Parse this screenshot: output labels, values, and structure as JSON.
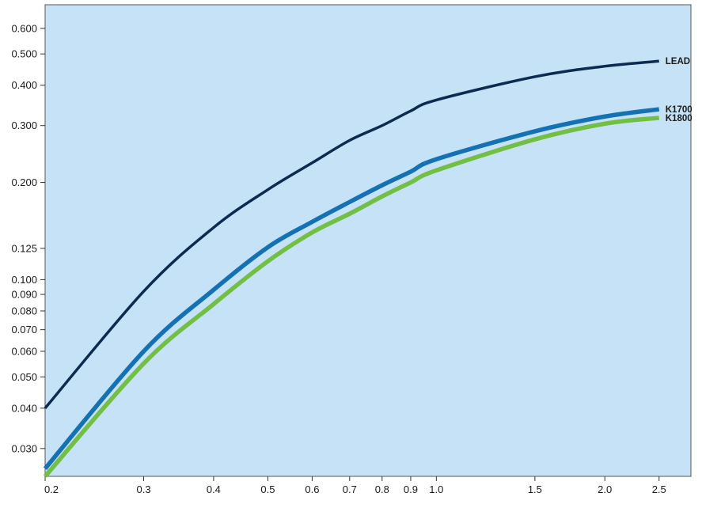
{
  "chart_data": {
    "type": "line",
    "title": "",
    "xlabel": "",
    "ylabel": "",
    "xlim": [
      0.2,
      2.85
    ],
    "ylim": [
      0.0246,
      0.71
    ],
    "grid": false,
    "y_ticks": [
      0.03,
      0.04,
      0.05,
      0.06,
      0.07,
      0.08,
      0.09,
      0.1,
      0.125,
      0.2,
      0.3,
      0.4,
      0.5,
      0.6
    ],
    "y_tick_labels": [
      "0.030",
      "0.040",
      "0.050",
      "0.060",
      "0.070",
      "0.080",
      "0.090",
      "0.100",
      "0.125",
      "0.200",
      "0.300",
      "0.400",
      "0.500",
      "0.600"
    ],
    "x_ticks": [
      0.2,
      0.3,
      0.4,
      0.5,
      0.6,
      0.7,
      0.8,
      0.9,
      1.0,
      1.5,
      2.0,
      2.5
    ],
    "x_tick_labels": [
      "0.2",
      "0.3",
      "0.4",
      "0.5",
      "0.6",
      "0.7",
      "0.8",
      "0.9",
      "1.0",
      "1.5",
      "2.0",
      "2.5"
    ],
    "series": [
      {
        "name": "LEAD",
        "color": "#0c2b50",
        "x": [
          0.2,
          0.3,
          0.4,
          0.5,
          0.6,
          0.7,
          0.8,
          0.9,
          1.0,
          1.5,
          2.0,
          2.5
        ],
        "y": [
          0.04,
          0.092,
          0.145,
          0.19,
          0.23,
          0.27,
          0.3,
          0.333,
          0.36,
          0.425,
          0.458,
          0.475
        ]
      },
      {
        "name": "K1700",
        "color": "#1472b4",
        "x": [
          0.2,
          0.3,
          0.4,
          0.5,
          0.6,
          0.7,
          0.8,
          0.9,
          1.0,
          1.5,
          2.0,
          2.5
        ],
        "y": [
          0.026,
          0.06,
          0.093,
          0.126,
          0.151,
          0.174,
          0.196,
          0.216,
          0.236,
          0.288,
          0.32,
          0.337
        ]
      },
      {
        "name": "K1800",
        "color": "#72bf44",
        "x": [
          0.2,
          0.3,
          0.4,
          0.5,
          0.6,
          0.7,
          0.8,
          0.9,
          1.0,
          1.5,
          2.0,
          2.5
        ],
        "y": [
          0.0246,
          0.055,
          0.084,
          0.114,
          0.14,
          0.16,
          0.181,
          0.2,
          0.218,
          0.272,
          0.304,
          0.317
        ]
      }
    ],
    "colors": {
      "plot_background": "#c6e2f6",
      "frame": "#555555"
    }
  }
}
